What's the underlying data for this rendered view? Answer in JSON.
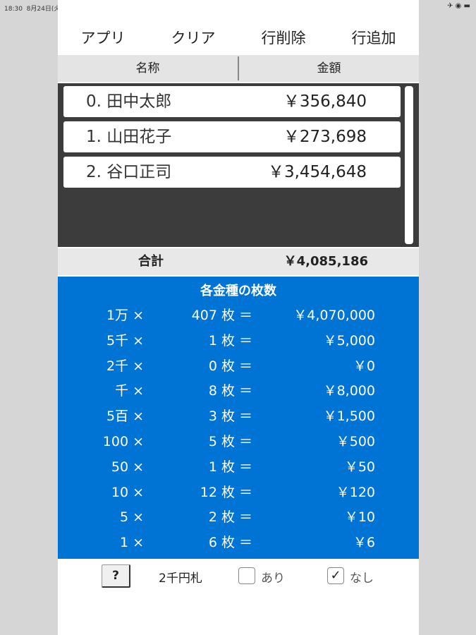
{
  "status": {
    "time": "18:30",
    "date": "8月24日(火)",
    "icons": "✈ ◉ ▬"
  },
  "toolbar": [
    "アプリ",
    "クリア",
    "行削除",
    "行追加"
  ],
  "header": {
    "name": "名称",
    "amount": "金額"
  },
  "rows": [
    {
      "name": "0. 田中太郎",
      "amount": "￥356,840"
    },
    {
      "name": "1. 山田花子",
      "amount": "￥273,698"
    },
    {
      "name": "2. 谷口正司",
      "amount": "￥3,454,648"
    }
  ],
  "total": {
    "label": "合計",
    "value": "￥4,085,186"
  },
  "denoms": {
    "title": "各金種の枚数",
    "items": [
      {
        "d": "1万 ×",
        "c": "407 枚 ＝",
        "v": "￥4,070,000"
      },
      {
        "d": "5千 ×",
        "c": "1 枚 ＝",
        "v": "￥5,000"
      },
      {
        "d": "2千 ×",
        "c": "0 枚 ＝",
        "v": "￥0"
      },
      {
        "d": "千 ×",
        "c": "8 枚 ＝",
        "v": "￥8,000"
      },
      {
        "d": "5百 ×",
        "c": "3 枚 ＝",
        "v": "￥1,500"
      },
      {
        "d": "100 ×",
        "c": "5 枚 ＝",
        "v": "￥500"
      },
      {
        "d": "50 ×",
        "c": "1 枚 ＝",
        "v": "￥50"
      },
      {
        "d": "10 ×",
        "c": "12 枚 ＝",
        "v": "￥120"
      },
      {
        "d": "5 ×",
        "c": "2 枚 ＝",
        "v": "￥10"
      },
      {
        "d": "1 ×",
        "c": "6 枚 ＝",
        "v": "￥6"
      }
    ]
  },
  "bottom": {
    "help": "?",
    "label": "2千円札",
    "opt_yes": "あり",
    "opt_no": "なし",
    "yes_checked": false,
    "no_checked": true,
    "check": "✓"
  },
  "colors": {
    "blue": "#0074d4",
    "list_bg": "#3c3c3c"
  }
}
